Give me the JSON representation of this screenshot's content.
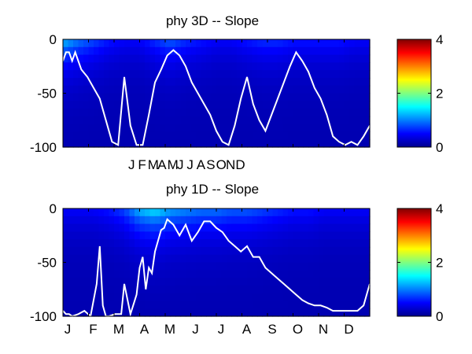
{
  "chart_data": [
    {
      "type": "heatmap",
      "title": "phy 3D   -- Slope",
      "xlabel": "",
      "ylabel": "",
      "ylim": [
        -100,
        0
      ],
      "yticks": [
        0,
        -50,
        -100
      ],
      "xtick_labels": [
        "J",
        "F",
        "M",
        "A",
        "M",
        "J",
        "J",
        "A",
        "S",
        "O",
        "N",
        "D"
      ],
      "xtick_labels_compressed": true,
      "colorbar": {
        "min": 0,
        "max": 4,
        "ticks": [
          0,
          2,
          4
        ],
        "colormap": "jet"
      },
      "line_series": {
        "color": "#ffffff",
        "x_fraction": [
          0.0,
          0.01,
          0.02,
          0.03,
          0.04,
          0.05,
          0.06,
          0.08,
          0.1,
          0.12,
          0.14,
          0.16,
          0.18,
          0.2,
          0.22,
          0.24,
          0.26,
          0.28,
          0.3,
          0.32,
          0.34,
          0.36,
          0.38,
          0.4,
          0.42,
          0.44,
          0.46,
          0.48,
          0.5,
          0.52,
          0.54,
          0.56,
          0.58,
          0.6,
          0.62,
          0.64,
          0.66,
          0.68,
          0.7,
          0.72,
          0.74,
          0.76,
          0.78,
          0.8,
          0.82,
          0.84,
          0.86,
          0.88,
          0.9,
          0.92,
          0.94,
          0.96,
          0.98,
          1.0
        ],
        "y": [
          -20,
          -12,
          -12,
          -20,
          -12,
          -20,
          -28,
          -35,
          -45,
          -55,
          -75,
          -95,
          -98,
          -35,
          -80,
          -98,
          -98,
          -70,
          -40,
          -28,
          -15,
          -10,
          -15,
          -25,
          -40,
          -50,
          -60,
          -70,
          -85,
          -95,
          -98,
          -80,
          -55,
          -35,
          -60,
          -75,
          -85,
          -70,
          -55,
          -40,
          -25,
          -12,
          -20,
          -30,
          -45,
          -55,
          -70,
          -90,
          -95,
          -98,
          -95,
          -98,
          -90,
          -80
        ]
      },
      "heat_profile": {
        "x_fraction": [
          0.0,
          0.05,
          0.1,
          0.15,
          0.2,
          0.25,
          0.3,
          0.35,
          0.4,
          0.45,
          0.5,
          0.55,
          0.6,
          0.65,
          0.7,
          0.75,
          0.8,
          0.85,
          0.9,
          0.95,
          1.0
        ],
        "surface_value": [
          1.3,
          1.0,
          0.8,
          0.6,
          0.5,
          0.5,
          0.7,
          0.9,
          0.7,
          0.6,
          0.5,
          0.5,
          0.6,
          0.7,
          0.7,
          0.6,
          0.6,
          0.6,
          0.6,
          0.5,
          0.5
        ]
      }
    },
    {
      "type": "heatmap",
      "title": "phy 1D   -- Slope",
      "xlabel": "",
      "ylabel": "",
      "ylim": [
        -100,
        0
      ],
      "yticks": [
        0,
        -50,
        -100
      ],
      "xtick_labels": [
        "J",
        "F",
        "M",
        "A",
        "M",
        "J",
        "J",
        "A",
        "S",
        "O",
        "N",
        "D"
      ],
      "xtick_labels_compressed": false,
      "colorbar": {
        "min": 0,
        "max": 4,
        "ticks": [
          0,
          2,
          4
        ],
        "colormap": "jet"
      },
      "line_series": {
        "color": "#ffffff",
        "x_fraction": [
          0.0,
          0.01,
          0.02,
          0.03,
          0.05,
          0.07,
          0.09,
          0.11,
          0.12,
          0.13,
          0.14,
          0.15,
          0.17,
          0.19,
          0.2,
          0.22,
          0.24,
          0.25,
          0.26,
          0.27,
          0.28,
          0.29,
          0.3,
          0.31,
          0.32,
          0.33,
          0.34,
          0.36,
          0.38,
          0.4,
          0.42,
          0.44,
          0.46,
          0.48,
          0.5,
          0.52,
          0.54,
          0.56,
          0.58,
          0.6,
          0.62,
          0.64,
          0.66,
          0.68,
          0.7,
          0.72,
          0.74,
          0.76,
          0.78,
          0.8,
          0.82,
          0.84,
          0.86,
          0.88,
          0.9,
          0.92,
          0.94,
          0.96,
          0.98,
          1.0
        ],
        "y": [
          -95,
          -98,
          -98,
          -100,
          -98,
          -95,
          -100,
          -70,
          -35,
          -90,
          -100,
          -100,
          -98,
          -98,
          -70,
          -98,
          -80,
          -55,
          -45,
          -75,
          -55,
          -60,
          -40,
          -30,
          -20,
          -18,
          -10,
          -15,
          -25,
          -15,
          -30,
          -22,
          -12,
          -12,
          -18,
          -22,
          -30,
          -35,
          -40,
          -35,
          -45,
          -45,
          -55,
          -60,
          -65,
          -70,
          -75,
          -80,
          -85,
          -88,
          -90,
          -90,
          -92,
          -95,
          -95,
          -95,
          -95,
          -95,
          -90,
          -70
        ]
      },
      "heat_profile": {
        "x_fraction": [
          0.0,
          0.05,
          0.1,
          0.15,
          0.2,
          0.25,
          0.3,
          0.35,
          0.4,
          0.45,
          0.5,
          0.55,
          0.6,
          0.65,
          0.7,
          0.75,
          0.8,
          0.85,
          0.9,
          0.95,
          1.0
        ],
        "surface_value": [
          0.5,
          0.5,
          0.5,
          0.6,
          0.8,
          1.3,
          1.5,
          1.2,
          1.1,
          1.0,
          1.0,
          0.9,
          0.9,
          0.8,
          0.7,
          0.6,
          0.6,
          0.5,
          0.5,
          0.5,
          0.5
        ]
      }
    }
  ]
}
